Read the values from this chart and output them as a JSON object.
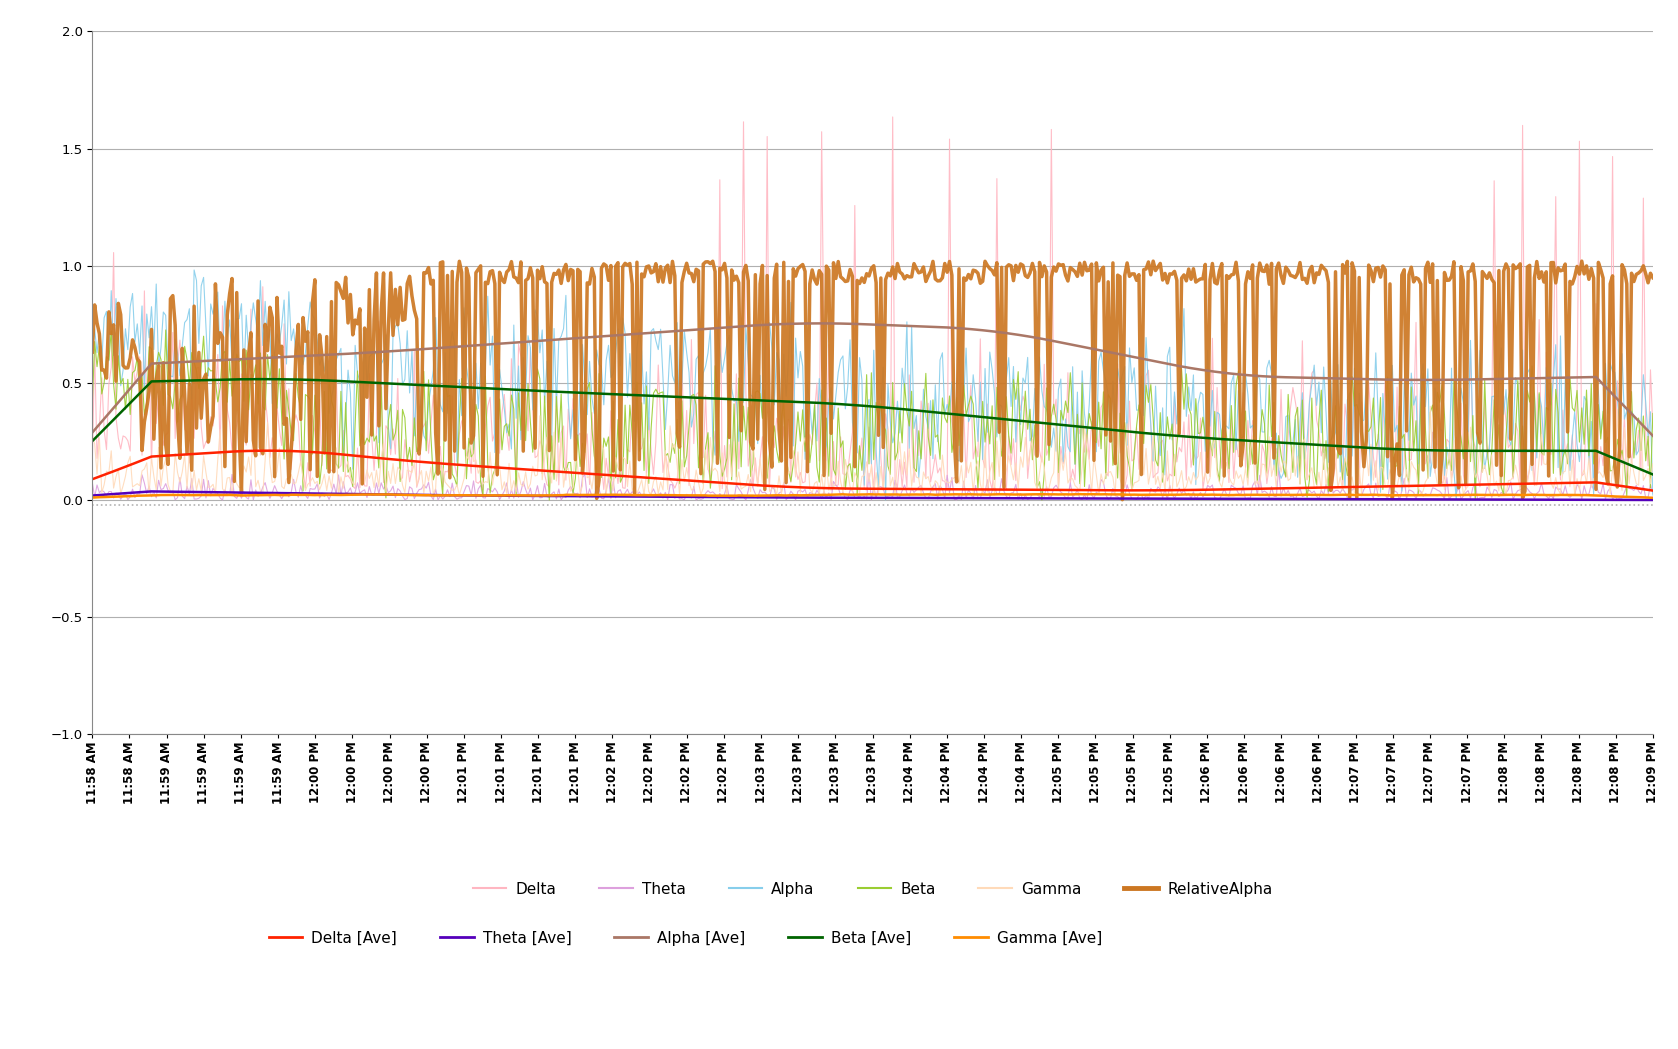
{
  "ylim": [
    -1.0,
    2.0
  ],
  "yticks": [
    -1.0,
    -0.5,
    0.0,
    0.5,
    1.0,
    1.5,
    2.0
  ],
  "n_points": 660,
  "colors": {
    "Delta": "#FFB6C1",
    "Theta": "#DDA0DD",
    "Alpha": "#87CEEB",
    "Beta": "#9ACD32",
    "Gamma": "#FFDAB9",
    "RelativeAlpha": "#CC7722",
    "Delta_Ave": "#FF2200",
    "Theta_Ave": "#5500BB",
    "Alpha_Ave": "#AA7766",
    "Beta_Ave": "#006400",
    "Gamma_Ave": "#FF8C00"
  },
  "background": "#FFFFFF",
  "grid_color": "#B0B0B0",
  "legend_fontsize": 11,
  "tick_fontsize": 8.5,
  "x_tick_labels": [
    "11:58 AM",
    "11:58 AM",
    "11:59 AM",
    "11:59 AM",
    "11:59 AM",
    "11:59 AM",
    "12:00 PM",
    "12:00 PM",
    "12:00 PM",
    "12:00 PM",
    "12:01 PM",
    "12:01 PM",
    "12:01 PM",
    "12:01 PM",
    "12:02 PM",
    "12:02 PM",
    "12:02 PM",
    "12:02 PM",
    "12:03 PM",
    "12:03 PM",
    "12:03 PM",
    "12:03 PM",
    "12:04 PM",
    "12:04 PM",
    "12:04 PM",
    "12:04 PM",
    "12:05 PM",
    "12:05 PM",
    "12:05 PM",
    "12:05 PM",
    "12:06 PM",
    "12:06 PM",
    "12:06 PM",
    "12:06 PM",
    "12:07 PM",
    "12:07 PM",
    "12:07 PM",
    "12:07 PM",
    "12:08 PM",
    "12:08 PM",
    "12:08 PM",
    "12:08 PM",
    "12:09 PM"
  ]
}
